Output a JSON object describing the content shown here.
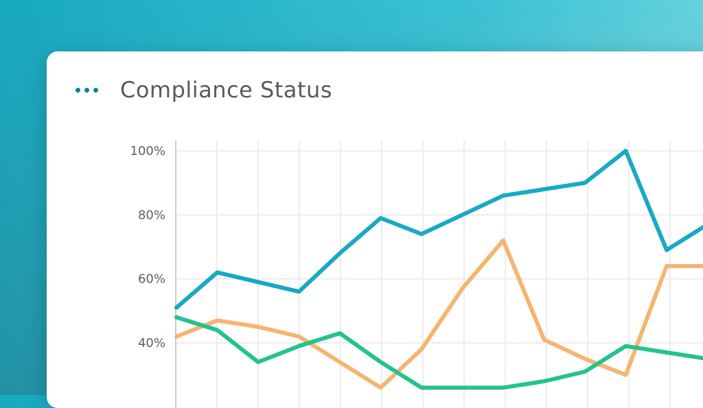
{
  "card": {
    "title": "Compliance Status"
  },
  "chart_data": {
    "type": "line",
    "title": "Compliance Status",
    "xlabel": "",
    "ylabel": "",
    "ylim": [
      22,
      103
    ],
    "y_ticks": [
      "100%",
      "80%",
      "60%",
      "40%"
    ],
    "y_tick_values": [
      100,
      80,
      60,
      40
    ],
    "grid": true,
    "x": [
      0,
      1,
      2,
      3,
      4,
      5,
      6,
      7,
      8,
      9,
      10,
      11,
      12,
      13
    ],
    "series": [
      {
        "color": "#18a9c3",
        "values": [
          51,
          62,
          59,
          56,
          68,
          79,
          74,
          80,
          86,
          88,
          90,
          100,
          69,
          77
        ]
      },
      {
        "color": "#f5b570",
        "values": [
          42,
          47,
          45,
          42,
          34,
          26,
          38,
          57,
          72,
          41,
          35,
          30,
          64,
          64
        ]
      },
      {
        "color": "#25c28e",
        "values": [
          48,
          44,
          34,
          39,
          43,
          34,
          26,
          26,
          26,
          28,
          31,
          39,
          37,
          35
        ]
      }
    ],
    "colors": {
      "grid": "#ececec",
      "axis": "#c9c9c9"
    }
  }
}
